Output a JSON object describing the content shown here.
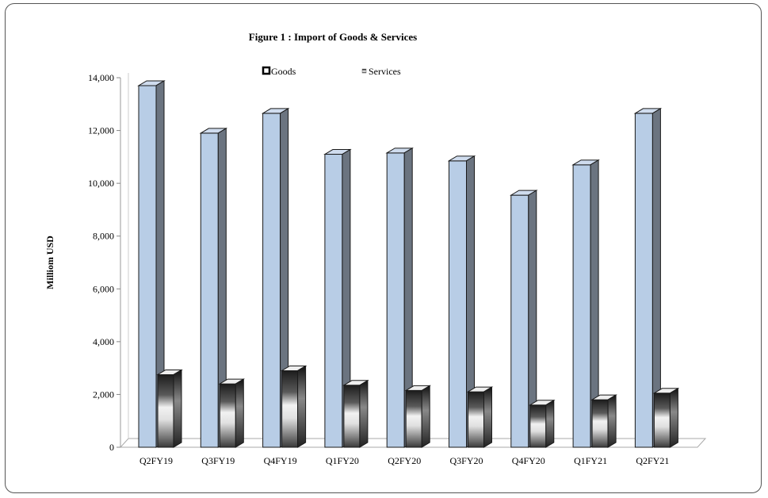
{
  "chart_data": {
    "type": "bar",
    "title": "Figure 1 : Import of Goods & Services",
    "ylabel": "Milliom USD",
    "xlabel": "",
    "categories": [
      "Q2FY19",
      "Q3FY19",
      "Q4FY19",
      "Q1FY20",
      "Q2FY20",
      "Q3FY20",
      "Q4FY20",
      "Q1FY21",
      "Q2FY21"
    ],
    "series": [
      {
        "name": "Goods",
        "values": [
          13700,
          11900,
          12650,
          11100,
          11150,
          10850,
          9550,
          10700,
          12650
        ],
        "color": "#b8cde6"
      },
      {
        "name": "Services",
        "values": [
          2750,
          2400,
          2900,
          2350,
          2150,
          2100,
          1600,
          1800,
          2050
        ],
        "color": "#7a7a7a"
      }
    ],
    "ylim": [
      0,
      14000
    ],
    "yticks": [
      0,
      2000,
      4000,
      6000,
      8000,
      10000,
      12000,
      14000
    ],
    "ytick_labels": [
      "0",
      "2,000",
      "4,000",
      "6,000",
      "8,000",
      "10,000",
      "12,000",
      "14,000"
    ],
    "legend_position": "top-center",
    "grid": false,
    "style": "3d-column"
  }
}
